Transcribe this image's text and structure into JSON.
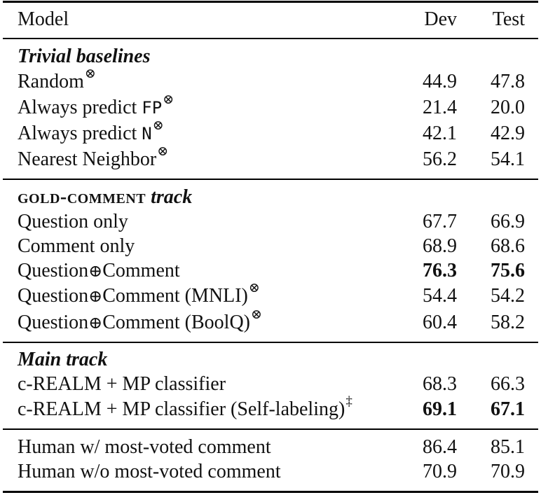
{
  "header": {
    "model": "Model",
    "dev": "Dev",
    "test": "Test"
  },
  "sections": [
    {
      "title": "Trivial baselines",
      "rows": [
        {
          "prefix": "Random",
          "code": "",
          "suffix": "",
          "mark": "⊗",
          "dev": "44.9",
          "test": "47.8"
        },
        {
          "prefix": "Always predict ",
          "code": "FP",
          "suffix": "",
          "mark": "⊗",
          "dev": "21.4",
          "test": "20.0"
        },
        {
          "prefix": "Always predict ",
          "code": "N",
          "suffix": "",
          "mark": "⊗",
          "dev": "42.1",
          "test": "42.9"
        },
        {
          "prefix": "Nearest Neighbor",
          "code": "",
          "suffix": "",
          "mark": "⊗",
          "dev": "56.2",
          "test": "54.1"
        }
      ]
    },
    {
      "title_smallcaps": "gold-comment",
      "title_italic": "track",
      "rows": [
        {
          "text": "Question only",
          "dev": "67.7",
          "test": "66.9"
        },
        {
          "text": "Comment only",
          "dev": "68.9",
          "test": "68.6"
        },
        {
          "q": "Question",
          "op": "⊕",
          "c": "Comment",
          "extra": "",
          "mark": "",
          "dev": "76.3",
          "test": "75.6",
          "bold": true
        },
        {
          "q": "Question",
          "op": "⊕",
          "c": "Comment",
          "extra": " (MNLI)",
          "mark": "⊗",
          "dev": "54.4",
          "test": "54.2"
        },
        {
          "q": "Question",
          "op": "⊕",
          "c": "Comment",
          "extra": " (BoolQ)",
          "mark": "⊗",
          "dev": "60.4",
          "test": "58.2"
        }
      ]
    },
    {
      "title": "Main track",
      "rows": [
        {
          "text": "c-REALM + MP classifier",
          "mark": "",
          "dev": "68.3",
          "test": "66.3"
        },
        {
          "text": "c-REALM + MP classifier (Self-labeling)",
          "mark": "‡",
          "dev": "69.1",
          "test": "67.1",
          "bold": true
        }
      ]
    },
    {
      "rows": [
        {
          "text": "Human w/ most-voted comment",
          "dev": "86.4",
          "test": "85.1"
        },
        {
          "text": "Human w/o most-voted comment",
          "dev": "70.9",
          "test": "70.9"
        }
      ]
    }
  ]
}
